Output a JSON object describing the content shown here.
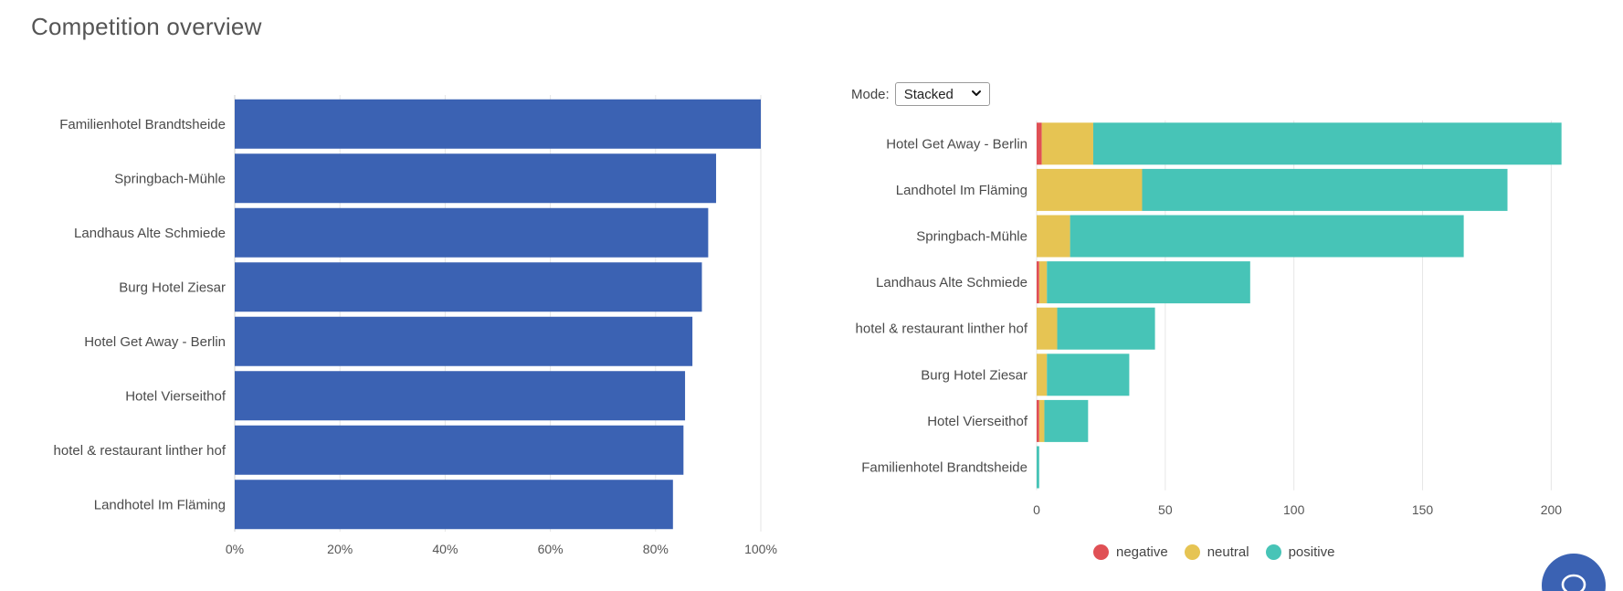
{
  "header": {
    "title": "Competition overview"
  },
  "colors": {
    "bar_primary": "#3b62b3",
    "negative": "#e05055",
    "neutral": "#e6c453",
    "positive": "#47c4b7",
    "chat_button": "#3b62b3",
    "grid": "#e6e6e6"
  },
  "mode": {
    "label": "Mode:",
    "selected": "Stacked"
  },
  "legend": {
    "items": [
      {
        "label": "negative",
        "color_key": "negative"
      },
      {
        "label": "neutral",
        "color_key": "neutral"
      },
      {
        "label": "positive",
        "color_key": "positive"
      }
    ]
  },
  "chat": {
    "icon": "chat-bubble-icon"
  },
  "chart_data": [
    {
      "type": "bar",
      "orientation": "horizontal",
      "title": "",
      "xlabel": "",
      "ylabel": "",
      "xlim": [
        0,
        100
      ],
      "xticks": [
        "0%",
        "20%",
        "40%",
        "60%",
        "80%",
        "100%"
      ],
      "grid": true,
      "categories": [
        "Familienhotel Brandtsheide",
        "Springbach-Mühle",
        "Landhaus Alte Schmiede",
        "Burg Hotel Ziesar",
        "Hotel Get Away - Berlin",
        "Hotel Vierseithof",
        "hotel & restaurant linther hof",
        "Landhotel Im Fläming"
      ],
      "values": [
        100,
        91.5,
        90,
        88.8,
        87,
        85.6,
        85.3,
        83.3
      ]
    },
    {
      "type": "bar",
      "orientation": "horizontal",
      "stacked": true,
      "title": "",
      "xlabel": "",
      "ylabel": "",
      "xlim": [
        0,
        210
      ],
      "xticks": [
        "0",
        "50",
        "100",
        "150",
        "200"
      ],
      "grid": true,
      "legend_position": "bottom",
      "categories": [
        "Hotel Get Away - Berlin",
        "Landhotel Im Fläming",
        "Springbach-Mühle",
        "Landhaus Alte Schmiede",
        "hotel & restaurant linther hof",
        "Burg Hotel Ziesar",
        "Hotel Vierseithof",
        "Familienhotel Brandtsheide"
      ],
      "series": [
        {
          "name": "negative",
          "values": [
            2,
            0,
            0,
            1,
            0,
            0,
            1,
            0
          ]
        },
        {
          "name": "neutral",
          "values": [
            20,
            41,
            13,
            3,
            8,
            4,
            2,
            0
          ]
        },
        {
          "name": "positive",
          "values": [
            182,
            142,
            153,
            79,
            38,
            32,
            17,
            1
          ]
        }
      ]
    }
  ]
}
